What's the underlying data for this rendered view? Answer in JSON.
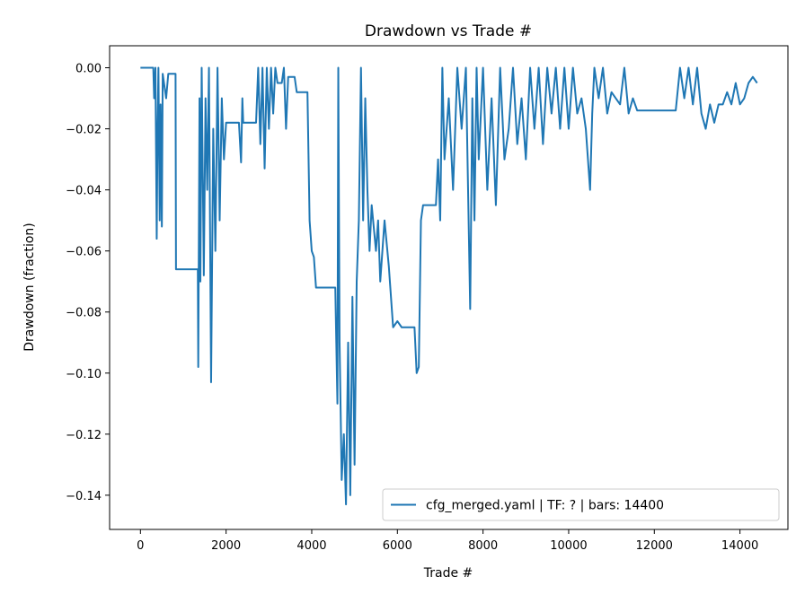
{
  "chart_data": {
    "type": "line",
    "title": "Drawdown vs Trade #",
    "xlabel": "Trade #",
    "ylabel": "Drawdown (fraction)",
    "x": [
      0,
      300,
      320,
      350,
      380,
      400,
      420,
      450,
      470,
      500,
      520,
      600,
      650,
      820,
      830,
      1340,
      1350,
      1380,
      1400,
      1430,
      1480,
      1520,
      1560,
      1600,
      1650,
      1700,
      1750,
      1800,
      1850,
      1900,
      1950,
      2000,
      2300,
      2350,
      2380,
      2400,
      2500,
      2700,
      2750,
      2800,
      2850,
      2900,
      2950,
      3000,
      3050,
      3100,
      3150,
      3200,
      3300,
      3350,
      3400,
      3450,
      3600,
      3650,
      3900,
      3950,
      4000,
      4050,
      4100,
      4550,
      4600,
      4620,
      4650,
      4700,
      4750,
      4800,
      4850,
      4900,
      4950,
      5000,
      5050,
      5100,
      5150,
      5200,
      5250,
      5300,
      5350,
      5400,
      5500,
      5550,
      5600,
      5700,
      5800,
      5900,
      6000,
      6100,
      6400,
      6450,
      6500,
      6550,
      6600,
      6900,
      6950,
      7000,
      7050,
      7100,
      7200,
      7300,
      7400,
      7500,
      7600,
      7700,
      7750,
      7800,
      7850,
      7900,
      8000,
      8100,
      8200,
      8300,
      8400,
      8500,
      8600,
      8700,
      8800,
      8900,
      9000,
      9100,
      9200,
      9300,
      9400,
      9500,
      9600,
      9700,
      9800,
      9900,
      10000,
      10100,
      10200,
      10300,
      10400,
      10500,
      10550,
      10600,
      10700,
      10800,
      10900,
      11000,
      11100,
      11200,
      11300,
      11400,
      11500,
      11600,
      11700,
      12500,
      12600,
      12700,
      12800,
      12900,
      13000,
      13100,
      13200,
      13300,
      13400,
      13500,
      13600,
      13700,
      13800,
      13900,
      14000,
      14100,
      14200,
      14300,
      14400
    ],
    "series": [
      {
        "name": "cfg_merged.yaml | TF: ? | bars: 14400",
        "color": "#1f77b4",
        "values": [
          0,
          0,
          -0.01,
          0,
          -0.056,
          -0.02,
          0,
          -0.05,
          -0.012,
          -0.052,
          -0.002,
          -0.01,
          -0.002,
          -0.002,
          -0.066,
          -0.066,
          -0.098,
          -0.01,
          -0.07,
          0,
          -0.068,
          -0.01,
          -0.04,
          0,
          -0.103,
          -0.02,
          -0.06,
          0,
          -0.05,
          -0.01,
          -0.03,
          -0.018,
          -0.018,
          -0.031,
          -0.01,
          -0.018,
          -0.018,
          -0.018,
          0,
          -0.025,
          0,
          -0.033,
          0,
          -0.02,
          0,
          -0.015,
          0,
          -0.005,
          -0.005,
          0,
          -0.02,
          -0.003,
          -0.003,
          -0.008,
          -0.008,
          -0.05,
          -0.06,
          -0.062,
          -0.072,
          -0.072,
          -0.11,
          0,
          -0.09,
          -0.135,
          -0.12,
          -0.143,
          -0.09,
          -0.14,
          -0.075,
          -0.13,
          -0.07,
          -0.05,
          0,
          -0.05,
          -0.01,
          -0.04,
          -0.06,
          -0.045,
          -0.06,
          -0.05,
          -0.07,
          -0.05,
          -0.065,
          -0.085,
          -0.083,
          -0.085,
          -0.085,
          -0.1,
          -0.098,
          -0.05,
          -0.045,
          -0.045,
          -0.03,
          -0.05,
          0,
          -0.03,
          -0.01,
          -0.04,
          0,
          -0.02,
          0,
          -0.079,
          -0.01,
          -0.05,
          0,
          -0.03,
          0,
          -0.04,
          -0.01,
          -0.045,
          0,
          -0.03,
          -0.02,
          0,
          -0.025,
          -0.01,
          -0.03,
          0,
          -0.02,
          0,
          -0.025,
          0,
          -0.015,
          0,
          -0.02,
          0,
          -0.02,
          0,
          -0.015,
          -0.01,
          -0.02,
          -0.04,
          -0.015,
          0,
          -0.01,
          0,
          -0.015,
          -0.008,
          -0.01,
          -0.012,
          0,
          -0.015,
          -0.01,
          -0.014,
          -0.014,
          -0.014,
          0,
          -0.01,
          0,
          -0.012,
          0,
          -0.015,
          -0.02,
          -0.012,
          -0.018,
          -0.012,
          -0.012,
          -0.008,
          -0.012,
          -0.005,
          -0.012,
          -0.01,
          -0.005,
          -0.003,
          -0.005
        ]
      }
    ],
    "xlim": [
      -720,
      15120
    ],
    "xticks": [
      0,
      2000,
      4000,
      6000,
      8000,
      10000,
      12000,
      14000
    ],
    "ylim": [
      -0.1512,
      0.0072
    ],
    "yticks": [
      {
        "value": 0,
        "label": "0.00"
      },
      {
        "value": -0.02,
        "label": "−0.02"
      },
      {
        "value": -0.04,
        "label": "−0.04"
      },
      {
        "value": -0.06,
        "label": "−0.06"
      },
      {
        "value": -0.08,
        "label": "−0.08"
      },
      {
        "value": -0.1,
        "label": "−0.10"
      },
      {
        "value": -0.12,
        "label": "−0.12"
      },
      {
        "value": -0.14,
        "label": "−0.14"
      }
    ],
    "grid": false,
    "legend": "lower right"
  }
}
